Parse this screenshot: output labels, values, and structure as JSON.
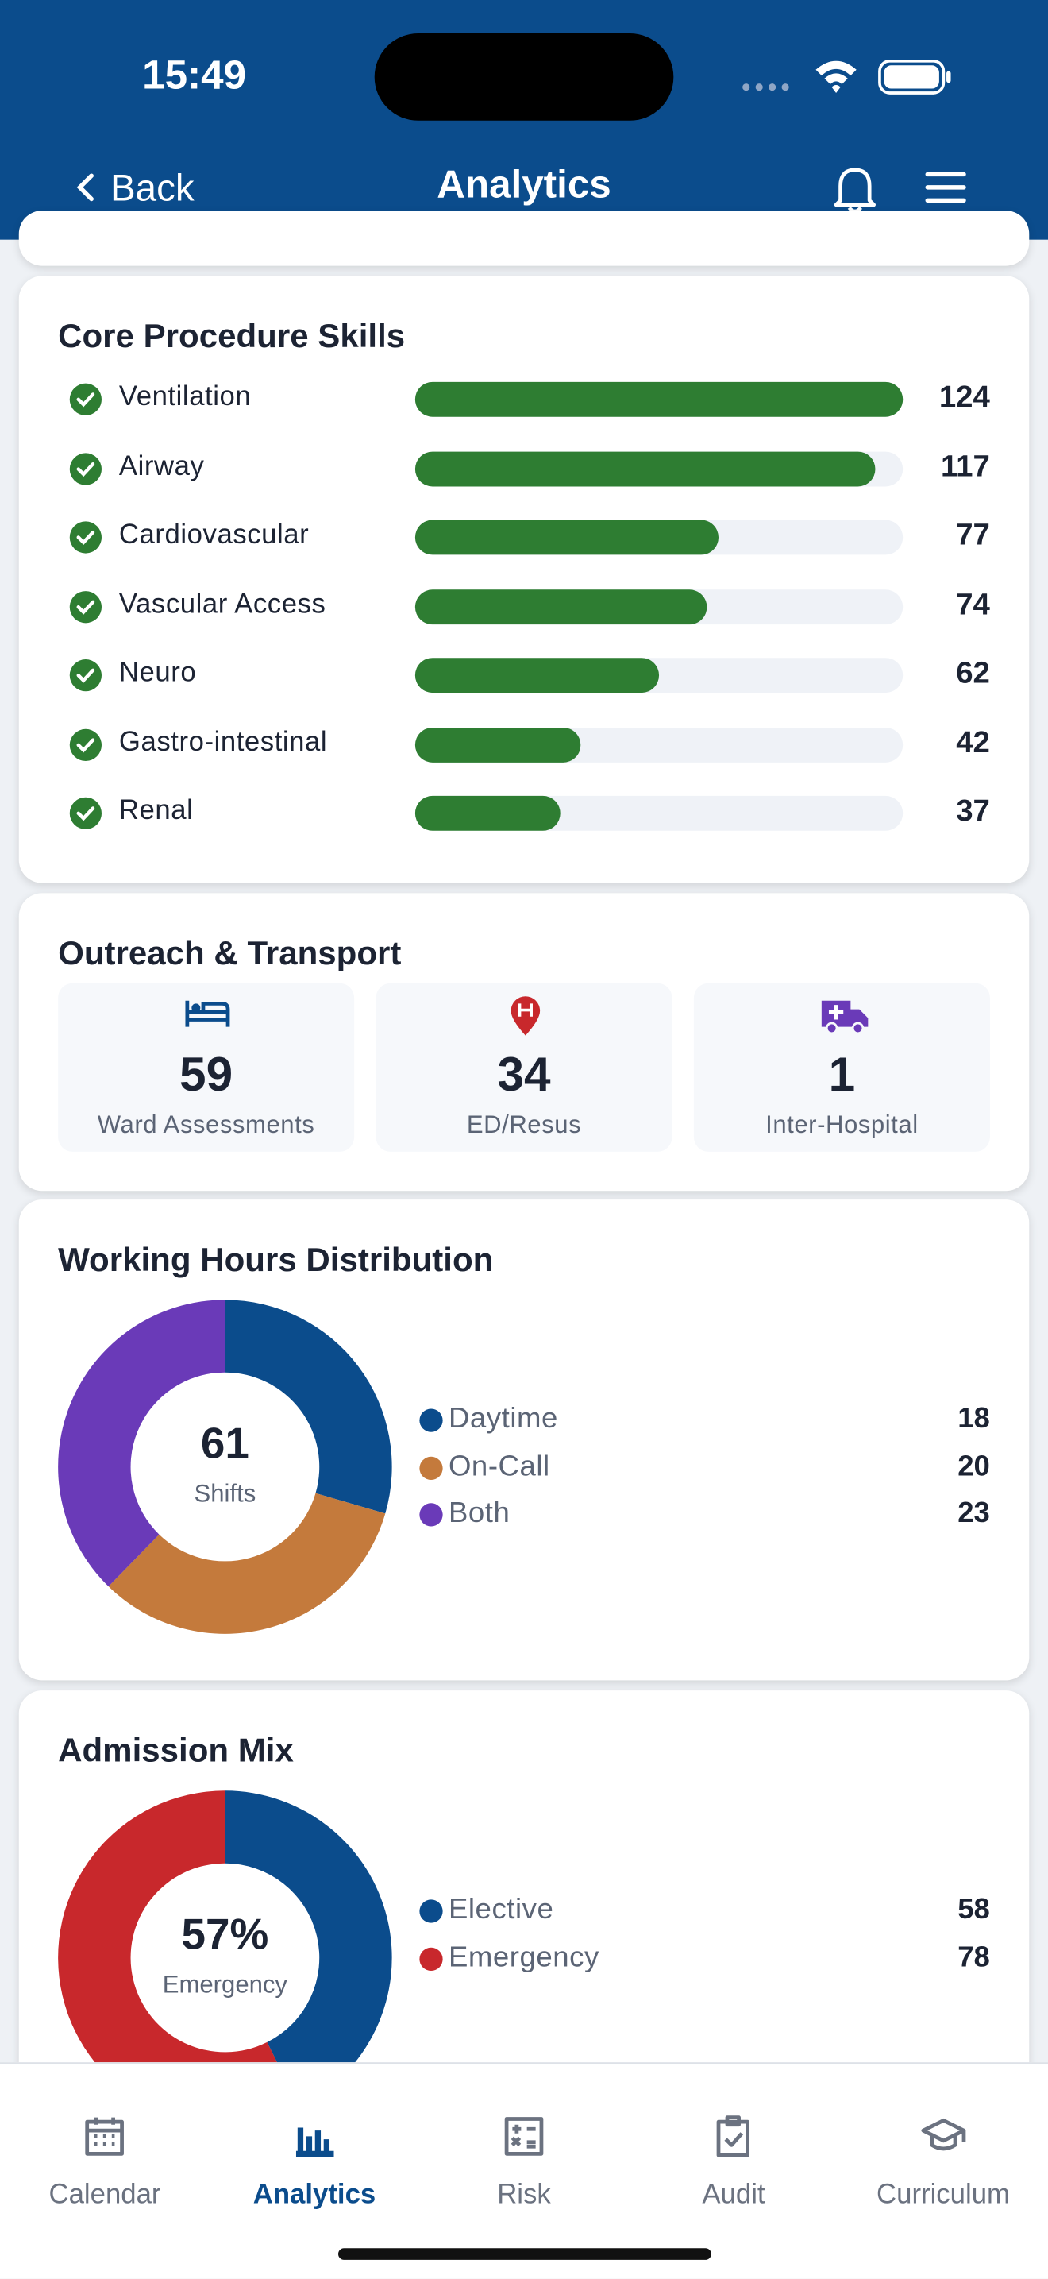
{
  "status": {
    "time": "15:49"
  },
  "nav": {
    "back": "Back",
    "title": "Analytics"
  },
  "skills": {
    "title": "Core Procedure Skills",
    "color": "#2e7d32",
    "items": [
      {
        "label": "Ventilation",
        "value": 124
      },
      {
        "label": "Airway",
        "value": 117
      },
      {
        "label": "Cardiovascular",
        "value": 77
      },
      {
        "label": "Vascular Access",
        "value": 74
      },
      {
        "label": "Neuro",
        "value": 62
      },
      {
        "label": "Gastro-intestinal",
        "value": 42
      },
      {
        "label": "Renal",
        "value": 37
      }
    ]
  },
  "outreach": {
    "title": "Outreach & Transport",
    "items": [
      {
        "value": 59,
        "label": "Ward Assessments"
      },
      {
        "value": 34,
        "label": "ED/Resus"
      },
      {
        "value": 1,
        "label": "Inter-Hospital"
      }
    ]
  },
  "hours": {
    "title": "Working Hours Distribution",
    "center_value": 61,
    "center_label": "Shifts",
    "segments": [
      {
        "name": "Daytime",
        "color": "#0b4c8c",
        "value": 18
      },
      {
        "name": "On-Call",
        "color": "#c47a3c",
        "value": 20
      },
      {
        "name": "Both",
        "color": "#6a3ab8",
        "value": 23
      }
    ]
  },
  "admission": {
    "title": "Admission Mix",
    "center_value": "57%",
    "center_label": "Emergency",
    "segments": [
      {
        "name": "Elective",
        "color": "#0b4c8c",
        "value": 58
      },
      {
        "name": "Emergency",
        "color": "#c8282c",
        "value": 78
      }
    ]
  },
  "tabs": {
    "active": 1,
    "items": [
      "Calendar",
      "Analytics",
      "Risk",
      "Audit",
      "Curriculum"
    ]
  }
}
